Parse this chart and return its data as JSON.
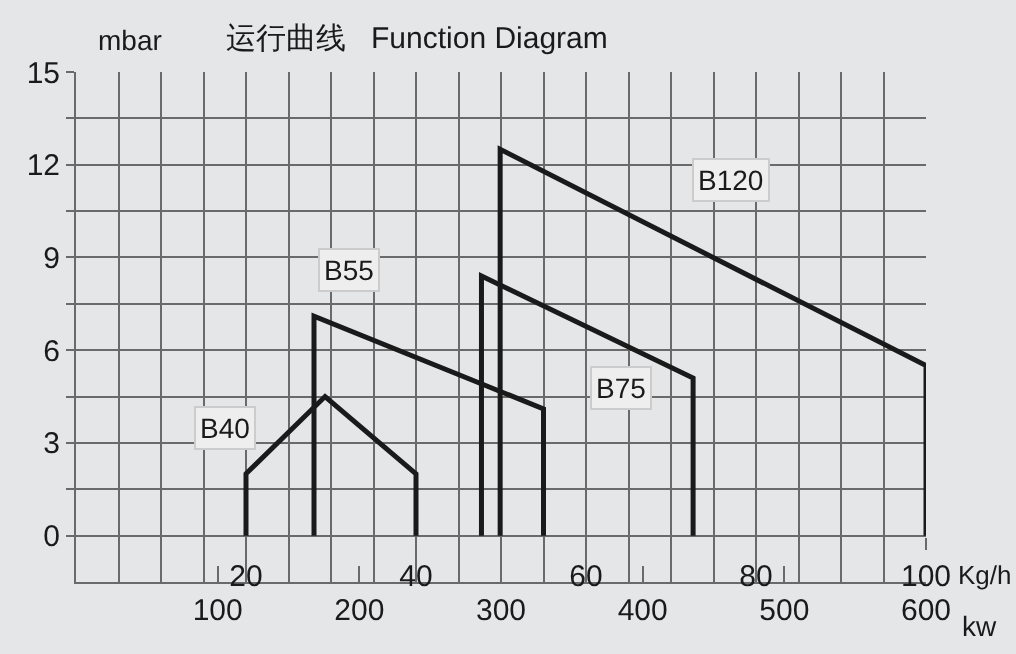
{
  "chart_data": {
    "type": "line",
    "title": "运行曲线   Function Diagram",
    "ylabel": "mbar",
    "xlabel": "Kg/h",
    "x2label": "kw",
    "xlim": [
      0,
      100
    ],
    "xticks": [
      {
        "value": 5,
        "label": null
      },
      {
        "value": 10,
        "label": null
      },
      {
        "value": 15,
        "label": null
      },
      20,
      {
        "value": 25,
        "label": null
      },
      {
        "value": 30,
        "label": null
      },
      {
        "value": 35,
        "label": null
      },
      40,
      {
        "value": 45,
        "label": null
      },
      {
        "value": 50,
        "label": null
      },
      {
        "value": 55,
        "label": null
      },
      60,
      {
        "value": 65,
        "label": null
      },
      {
        "value": 70,
        "label": null
      },
      {
        "value": 75,
        "label": null
      },
      80,
      {
        "value": 85,
        "label": null
      },
      {
        "value": 90,
        "label": null
      },
      {
        "value": 95,
        "label": null
      },
      100
    ],
    "x2lim": [
      0,
      600
    ],
    "x2ticks": [
      100,
      200,
      300,
      400,
      500,
      600
    ],
    "ylim": [
      -1.5,
      15
    ],
    "yticks": [
      0,
      {
        "value": 1.5,
        "label": null
      },
      3,
      {
        "value": 4.5,
        "label": null
      },
      6,
      {
        "value": 7.5,
        "label": null
      },
      9,
      {
        "value": 10.5,
        "label": null
      },
      12,
      {
        "value": 13.5,
        "label": null
      },
      15
    ],
    "grid": true,
    "legend": false,
    "marker": "none",
    "line_style": "solid",
    "series": [
      {
        "name": "B40",
        "color": "#1a1a1a",
        "x": [
          20,
          20,
          29.3,
          40,
          40
        ],
        "values": [
          0,
          2,
          4.5,
          2,
          0
        ]
      },
      {
        "name": "B55",
        "color": "#1a1a1a",
        "x": [
          28,
          28,
          55,
          55
        ],
        "values": [
          0,
          7.1,
          4.1,
          0
        ]
      },
      {
        "name": "B75",
        "color": "#1a1a1a",
        "x": [
          47.7,
          47.7,
          72.6,
          72.6
        ],
        "values": [
          0,
          8.4,
          5.1,
          0
        ]
      },
      {
        "name": "B120",
        "color": "#1a1a1a",
        "x": [
          49.9,
          49.9,
          100,
          100
        ],
        "values": [
          0,
          12.5,
          5.5,
          0
        ]
      }
    ]
  }
}
